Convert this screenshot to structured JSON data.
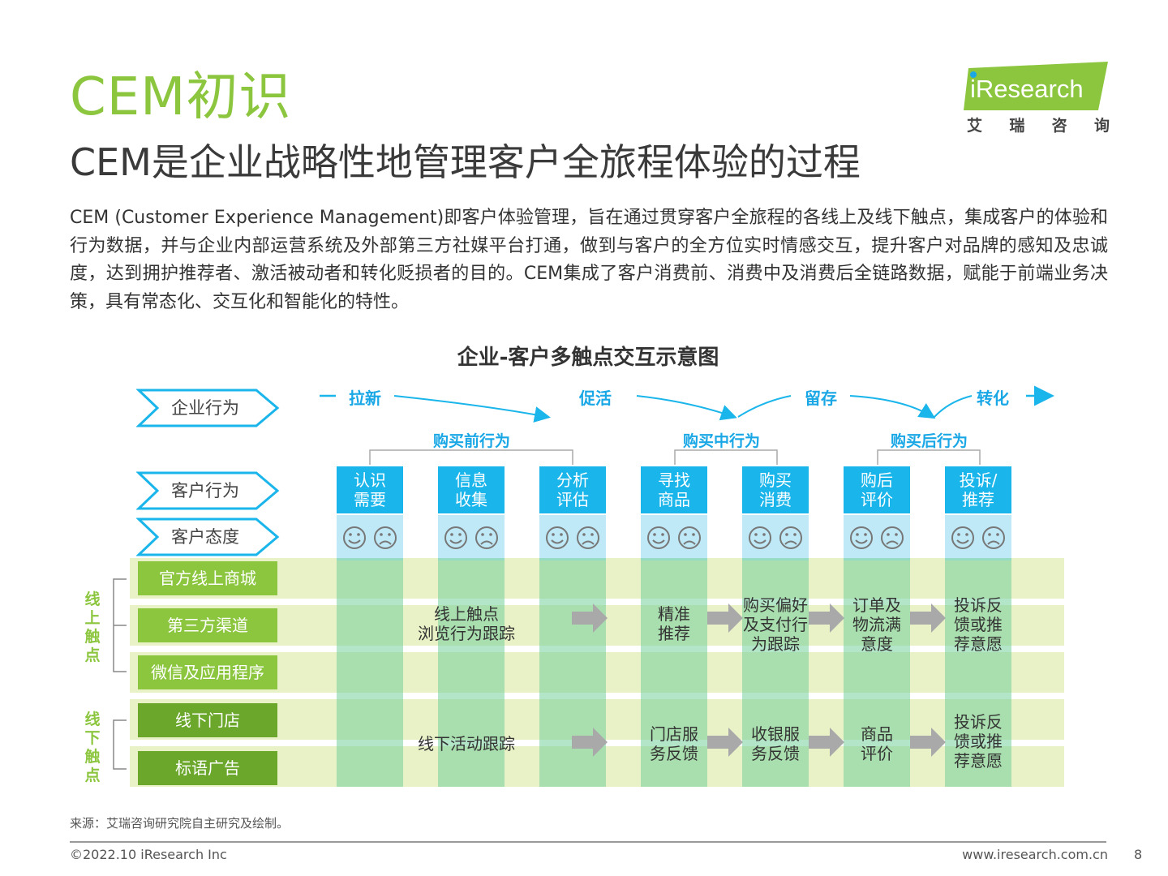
{
  "header": {
    "title": "CEM初识",
    "subtitle": "CEM是企业战略性地管理客户全旅程体验的过程",
    "logo_text": "iResearch",
    "logo_sub": [
      "艾",
      "瑞",
      "咨",
      "询"
    ],
    "accent_color": "#8cc63f"
  },
  "body_text": "CEM (Customer Experience Management)即客户体验管理，旨在通过贯穿客户全旅程的各线上及线下触点，集成客户的体验和行为数据，并与企业内部运营系统及外部第三方社媒平台打通，做到与客户的全方位实时情感交互，提升客户对品牌的感知及忠诚度，达到拥护推荐者、激活被动者和转化贬损者的目的。CEM集成了客户消费前、消费中及消费后全链路数据，赋能于前端业务决策，具有常态化、交互化和智能化的特性。",
  "diagram": {
    "title": "企业-客户多触点交互示意图",
    "row_labels": [
      "企业行为",
      "客户行为",
      "客户态度"
    ],
    "stages": [
      "拉新",
      "促活",
      "留存",
      "转化"
    ],
    "phases": [
      "购买前行为",
      "购买中行为",
      "购买后行为"
    ],
    "columns": [
      [
        "认识",
        "需要"
      ],
      [
        "信息",
        "收集"
      ],
      [
        "分析",
        "评估"
      ],
      [
        "寻找",
        "商品"
      ],
      [
        "购买",
        "消费"
      ],
      [
        "购后",
        "评价"
      ],
      [
        "投诉/",
        "推荐"
      ]
    ],
    "online_label": "线上触点",
    "offline_label": "线下触点",
    "online_touchpoints": [
      "官方线上商城",
      "第三方渠道",
      "微信及应用程序"
    ],
    "offline_touchpoints": [
      "线下门店",
      "标语广告"
    ],
    "online_cells": [
      [
        "线上触点",
        "浏览行为跟踪"
      ],
      [
        "精准",
        "推荐"
      ],
      [
        "购买偏好",
        "及支付行",
        "为跟踪"
      ],
      [
        "订单及",
        "物流满",
        "意度"
      ],
      [
        "投诉反",
        "馈或推",
        "荐意愿"
      ]
    ],
    "offline_cells": [
      [
        "线下活动跟踪"
      ],
      [
        "门店服",
        "务反馈"
      ],
      [
        "收银服",
        "务反馈"
      ],
      [
        "商品",
        "评价"
      ],
      [
        "投诉反",
        "馈或推",
        "荐意愿"
      ]
    ],
    "colors": {
      "blue": "#1ab5ea",
      "light_blue": "#bfe9f7",
      "green": "#8cc63f",
      "band": "#e8f2c6"
    }
  },
  "footer": {
    "source": "来源：艾瑞咨询研究院自主研究及绘制。",
    "copyright": "©2022.10 iResearch Inc",
    "website": "www.iresearch.com.cn",
    "page": "8"
  }
}
